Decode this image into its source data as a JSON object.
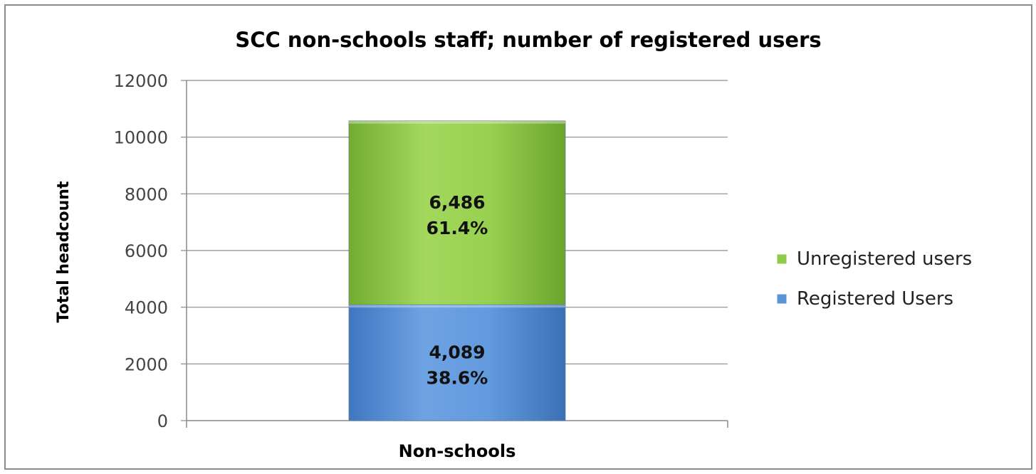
{
  "chart_data": {
    "type": "bar",
    "stacked": true,
    "title": "SCC non-schools staff; number of registered users",
    "xlabel": "",
    "ylabel": "Total headcount",
    "categories": [
      "Non-schools"
    ],
    "ylim": [
      0,
      12000
    ],
    "yticks": [
      "0",
      "2000",
      "4000",
      "6000",
      "8000",
      "10000",
      "12000"
    ],
    "grid": true,
    "legend_position": "right",
    "series": [
      {
        "name": "Registered Users",
        "values": [
          4089
        ],
        "labels": [
          {
            "value": "4,089",
            "percent": "38.6%"
          }
        ],
        "color": "#5b93d8"
      },
      {
        "name": "Unregistered users",
        "values": [
          6486
        ],
        "labels": [
          {
            "value": "6,486",
            "percent": "61.4%"
          }
        ],
        "color": "#8fca4a"
      }
    ],
    "legend_order": [
      "Unregistered users",
      "Registered Users"
    ]
  }
}
